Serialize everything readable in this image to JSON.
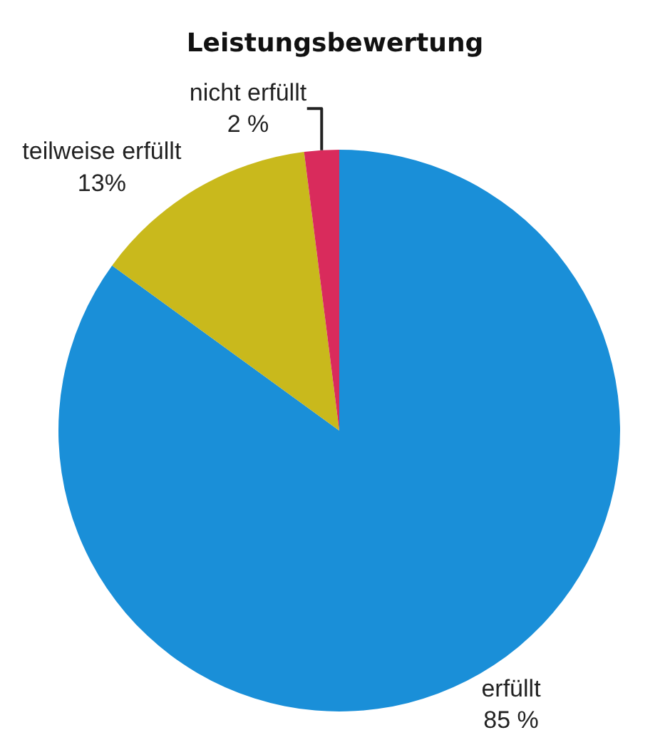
{
  "chart_data": {
    "type": "pie",
    "title": "Leistungsbewertung",
    "categories": [
      "erfüllt",
      "teilweise erfüllt",
      "nicht erfüllt"
    ],
    "values": [
      85,
      13,
      2
    ],
    "value_labels": [
      "85 %",
      "13%",
      "2 %"
    ],
    "colors": [
      "#1a8fd8",
      "#c9b91c",
      "#d92b5c"
    ],
    "legend": false
  }
}
